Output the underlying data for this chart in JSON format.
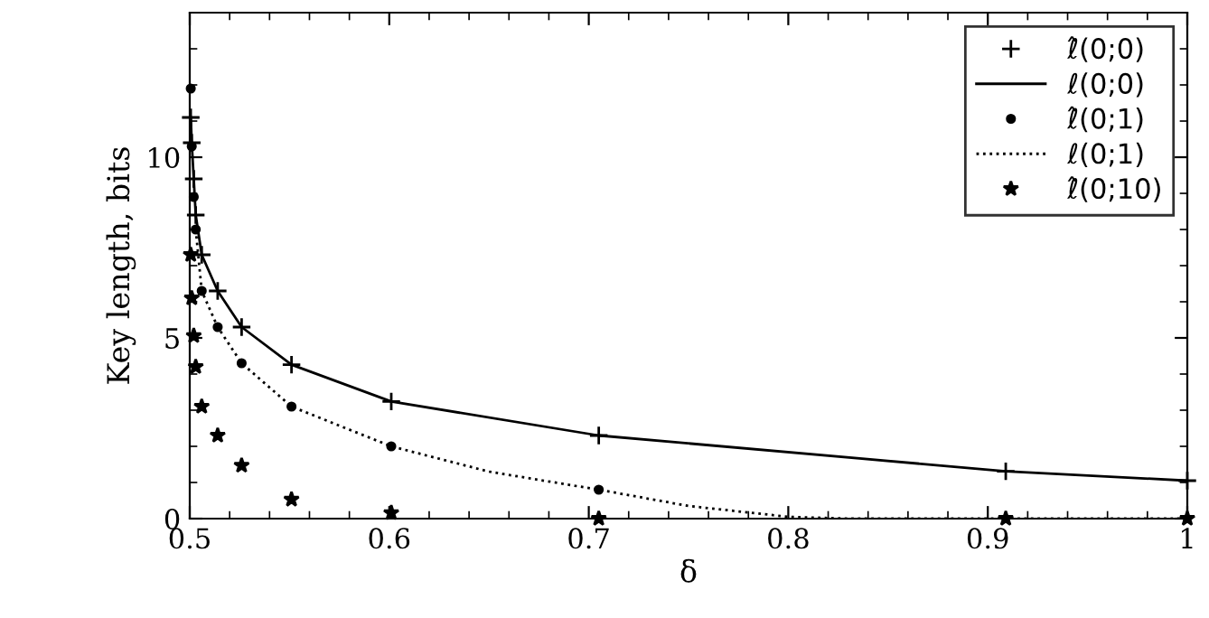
{
  "chart_data": {
    "type": "line",
    "xlabel": "δ",
    "ylabel": "Key length, bits",
    "xlim": [
      0.5,
      1
    ],
    "xticks": [
      0.5,
      0.6,
      0.7,
      0.8,
      0.9,
      1
    ],
    "ylim": [
      0,
      14
    ],
    "yticks": [
      0,
      5,
      10
    ],
    "legend": "top right",
    "grid": false,
    "series": [
      {
        "name": "ℓ̂(0;0)",
        "type": "scatter",
        "marker": "cross",
        "color": "#000000",
        "x": [
          0.5005,
          0.501,
          0.502,
          0.503,
          0.506,
          0.514,
          0.526,
          0.551,
          0.601,
          0.705,
          0.909,
          1.0
        ],
        "values": [
          11.1,
          10.4,
          9.4,
          8.4,
          7.3,
          6.3,
          5.3,
          4.26,
          3.24,
          2.3,
          1.31,
          1.05
        ]
      },
      {
        "name": "ℓ(0;0)",
        "line_style": "solid",
        "color": "#000000",
        "x": [
          0.5005,
          0.501,
          0.502,
          0.503,
          0.506,
          0.514,
          0.526,
          0.551,
          0.601,
          0.705,
          0.909,
          1.0
        ],
        "values": [
          11.1,
          10.4,
          9.4,
          8.4,
          7.3,
          6.3,
          5.3,
          4.26,
          3.24,
          2.3,
          1.31,
          1.05
        ]
      },
      {
        "name": "ℓ̂(0;1)",
        "type": "scatter",
        "marker": "circle",
        "color": "#000000",
        "x": [
          0.5005,
          0.501,
          0.502,
          0.503,
          0.506,
          0.514,
          0.526,
          0.551,
          0.601,
          0.705
        ],
        "values": [
          11.9,
          10.3,
          8.9,
          8.0,
          6.3,
          5.3,
          4.3,
          3.1,
          2.0,
          0.8
        ]
      },
      {
        "name": "ℓ(0;1)",
        "line_style": "dotted",
        "color": "#000000",
        "x": [
          0.503,
          0.506,
          0.514,
          0.526,
          0.551,
          0.601,
          0.65,
          0.705,
          0.75,
          0.8,
          0.83,
          1.0
        ],
        "values": [
          8.0,
          6.3,
          5.3,
          4.3,
          3.1,
          2.0,
          1.3,
          0.8,
          0.35,
          0.05,
          0,
          0
        ]
      },
      {
        "name": "ℓ̂(0;10)",
        "type": "scatter",
        "marker": "star",
        "color": "#000000",
        "x": [
          0.5005,
          0.501,
          0.502,
          0.503,
          0.506,
          0.514,
          0.526,
          0.551,
          0.601,
          0.705,
          0.909,
          1.0
        ],
        "values": [
          7.3,
          6.1,
          5.06,
          4.2,
          3.1,
          2.3,
          1.47,
          0.53,
          0.16,
          0,
          0,
          0
        ]
      }
    ]
  }
}
